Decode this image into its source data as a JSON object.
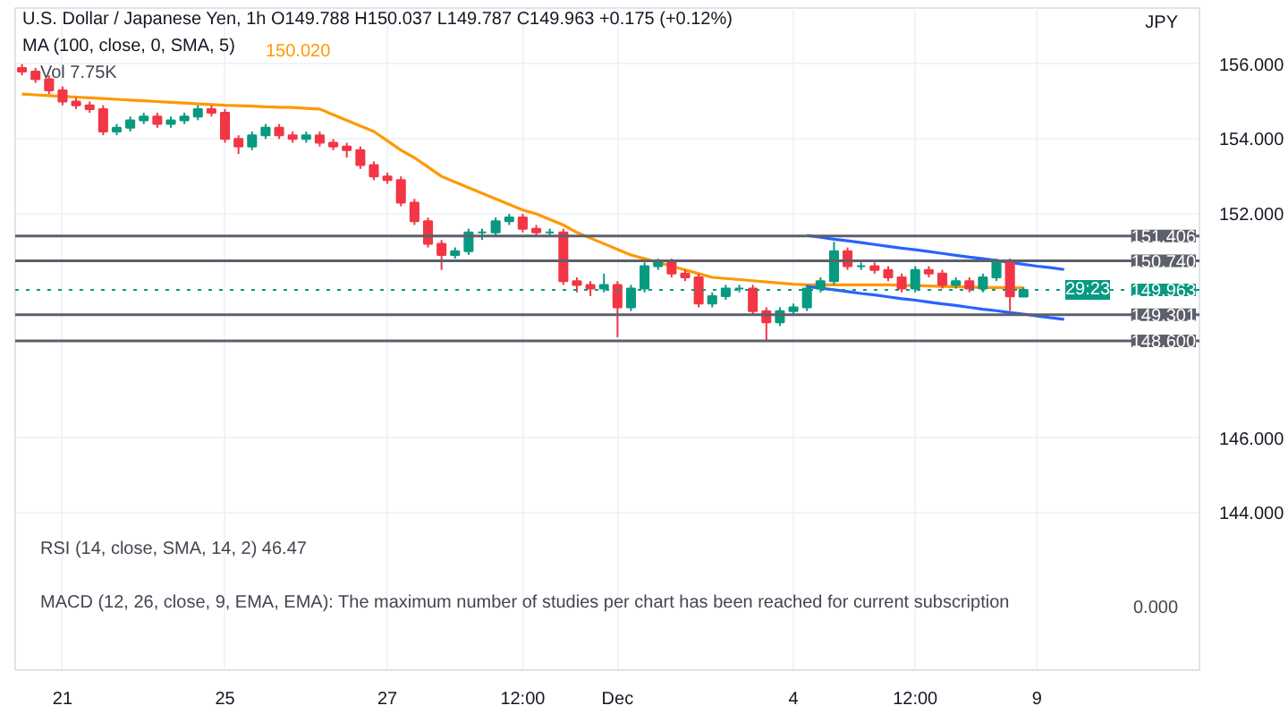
{
  "chart_data": {
    "type": "candlestick",
    "title": "U.S. Dollar / Japanese Yen, 1h",
    "subtitle": "O149.788 H150.037 L149.787 C149.963 +0.175 (+0.12%)",
    "ylabel": "JPY",
    "categories": [
      null,
      null,
      null,
      "21",
      null,
      null,
      null,
      null,
      null,
      null,
      null,
      null,
      null,
      null,
      null,
      "25",
      null,
      null,
      null,
      null,
      null,
      null,
      null,
      null,
      null,
      null,
      null,
      "27",
      null,
      null,
      null,
      null,
      null,
      null,
      null,
      null,
      null,
      "12:00",
      null,
      null,
      null,
      null,
      null,
      null,
      "Dec",
      null,
      null,
      null,
      null,
      null,
      null,
      null,
      null,
      null,
      null,
      null,
      null,
      "4",
      null,
      null,
      null,
      null,
      null,
      null,
      null,
      null,
      "12:00",
      null,
      null,
      null,
      null,
      null,
      null,
      null,
      null,
      "9",
      null,
      null
    ],
    "ohlc": [
      [
        155.9,
        156.0,
        155.7,
        155.8
      ],
      [
        155.8,
        155.9,
        155.5,
        155.6
      ],
      [
        155.6,
        155.7,
        155.2,
        155.3
      ],
      [
        155.3,
        155.4,
        154.9,
        155.0
      ],
      [
        155.0,
        155.1,
        154.8,
        154.9
      ],
      [
        154.9,
        155.0,
        154.7,
        154.8
      ],
      [
        154.8,
        154.9,
        154.1,
        154.2
      ],
      [
        154.2,
        154.4,
        154.1,
        154.3
      ],
      [
        154.3,
        154.6,
        154.2,
        154.5
      ],
      [
        154.5,
        154.7,
        154.4,
        154.6
      ],
      [
        154.6,
        154.7,
        154.3,
        154.4
      ],
      [
        154.4,
        154.6,
        154.3,
        154.5
      ],
      [
        154.5,
        154.7,
        154.4,
        154.6
      ],
      [
        154.6,
        154.9,
        154.5,
        154.8
      ],
      [
        154.8,
        154.9,
        154.6,
        154.7
      ],
      [
        154.7,
        154.8,
        153.9,
        154.0
      ],
      [
        154.0,
        154.1,
        153.6,
        153.8
      ],
      [
        153.8,
        154.2,
        153.7,
        154.1
      ],
      [
        154.1,
        154.4,
        154.0,
        154.3
      ],
      [
        154.3,
        154.4,
        154.0,
        154.1
      ],
      [
        154.1,
        154.2,
        153.9,
        154.0
      ],
      [
        154.0,
        154.2,
        153.9,
        154.1
      ],
      [
        154.1,
        154.2,
        153.8,
        153.9
      ],
      [
        153.9,
        154.0,
        153.7,
        153.8
      ],
      [
        153.8,
        153.9,
        153.5,
        153.7
      ],
      [
        153.7,
        153.8,
        153.2,
        153.3
      ],
      [
        153.3,
        153.4,
        152.9,
        153.0
      ],
      [
        153.0,
        153.1,
        152.8,
        152.9
      ],
      [
        152.9,
        153.0,
        152.2,
        152.3
      ],
      [
        152.3,
        152.4,
        151.7,
        151.8
      ],
      [
        151.8,
        151.9,
        151.1,
        151.2
      ],
      [
        151.2,
        151.3,
        150.5,
        150.9
      ],
      [
        150.9,
        151.1,
        150.8,
        151.0
      ],
      [
        151.0,
        151.6,
        150.9,
        151.5
      ],
      [
        151.5,
        151.6,
        151.3,
        151.5
      ],
      [
        151.5,
        151.9,
        151.4,
        151.8
      ],
      [
        151.8,
        152.0,
        151.7,
        151.9
      ],
      [
        151.9,
        152.0,
        151.5,
        151.6
      ],
      [
        151.6,
        151.7,
        151.4,
        151.5
      ],
      [
        151.5,
        151.6,
        151.4,
        151.5
      ],
      [
        151.5,
        151.6,
        150.1,
        150.2
      ],
      [
        150.2,
        150.3,
        149.9,
        150.1
      ],
      [
        150.1,
        150.2,
        149.8,
        150.0
      ],
      [
        150.0,
        150.4,
        149.9,
        150.1
      ],
      [
        150.1,
        150.2,
        148.7,
        149.5
      ],
      [
        149.5,
        150.1,
        149.4,
        150.0
      ],
      [
        150.0,
        150.7,
        149.9,
        150.6
      ],
      [
        150.6,
        150.8,
        150.5,
        150.7
      ],
      [
        150.7,
        150.8,
        150.3,
        150.4
      ],
      [
        150.4,
        150.5,
        150.2,
        150.3
      ],
      [
        150.3,
        150.4,
        149.5,
        149.6
      ],
      [
        149.6,
        149.9,
        149.5,
        149.8
      ],
      [
        149.8,
        150.1,
        149.7,
        150.0
      ],
      [
        150.0,
        150.1,
        149.9,
        150.0
      ],
      [
        150.0,
        150.1,
        149.3,
        149.4
      ],
      [
        149.4,
        149.5,
        148.6,
        149.1
      ],
      [
        149.1,
        149.5,
        149.0,
        149.4
      ],
      [
        149.4,
        149.6,
        149.3,
        149.5
      ],
      [
        149.5,
        150.1,
        149.4,
        150.0
      ],
      [
        150.0,
        150.3,
        149.9,
        150.2
      ],
      [
        150.2,
        151.25,
        150.1,
        151.0
      ],
      [
        151.0,
        151.1,
        150.5,
        150.6
      ],
      [
        150.6,
        150.7,
        150.5,
        150.6
      ],
      [
        150.6,
        150.7,
        150.4,
        150.5
      ],
      [
        150.5,
        150.6,
        150.2,
        150.3
      ],
      [
        150.3,
        150.4,
        149.9,
        150.0
      ],
      [
        150.0,
        150.6,
        149.9,
        150.5
      ],
      [
        150.5,
        150.6,
        150.3,
        150.4
      ],
      [
        150.4,
        150.5,
        150.0,
        150.1
      ],
      [
        150.1,
        150.3,
        150.0,
        150.2
      ],
      [
        150.2,
        150.3,
        149.9,
        150.0
      ],
      [
        150.0,
        150.4,
        149.9,
        150.3
      ],
      [
        150.3,
        150.8,
        150.2,
        150.7
      ],
      [
        150.7,
        150.8,
        149.4,
        149.79
      ],
      [
        149.788,
        150.037,
        149.787,
        149.963
      ],
      null,
      null,
      null
    ],
    "series": [
      {
        "type": "line",
        "name": "MA (100, close, 0, SMA, 5)",
        "color": "#ff9800",
        "values": [
          155.2,
          155.18,
          155.16,
          155.14,
          155.12,
          155.1,
          155.08,
          155.06,
          155.04,
          155.02,
          155.0,
          154.98,
          154.96,
          154.94,
          154.92,
          154.9,
          154.89,
          154.88,
          154.86,
          154.85,
          154.84,
          154.82,
          154.8,
          154.65,
          154.5,
          154.35,
          154.2,
          153.95,
          153.7,
          153.5,
          153.25,
          153.0,
          152.85,
          152.7,
          152.55,
          152.4,
          152.25,
          152.1,
          152.0,
          151.85,
          151.7,
          151.5,
          151.35,
          151.2,
          151.05,
          150.9,
          150.8,
          150.7,
          150.6,
          150.5,
          150.4,
          150.3,
          150.27,
          150.24,
          150.21,
          150.18,
          150.15,
          150.12,
          150.1,
          150.1,
          150.1,
          150.1,
          150.1,
          150.1,
          150.1,
          150.09,
          150.08,
          150.07,
          150.06,
          150.05,
          150.04,
          150.03,
          150.03,
          150.02,
          150.02,
          null,
          null,
          null
        ]
      },
      {
        "type": "line",
        "color": "#2962ff",
        "values": [
          null,
          null,
          null,
          null,
          null,
          null,
          null,
          null,
          null,
          null,
          null,
          null,
          null,
          null,
          null,
          null,
          null,
          null,
          null,
          null,
          null,
          null,
          null,
          null,
          null,
          null,
          null,
          null,
          null,
          null,
          null,
          null,
          null,
          null,
          null,
          null,
          null,
          null,
          null,
          null,
          null,
          null,
          null,
          null,
          null,
          null,
          null,
          null,
          null,
          null,
          null,
          null,
          null,
          null,
          null,
          null,
          null,
          null,
          151.42,
          151.37,
          151.32,
          151.28,
          151.23,
          151.18,
          151.13,
          151.08,
          151.04,
          150.99,
          150.94,
          150.89,
          150.84,
          150.8,
          150.75,
          150.7,
          150.65,
          150.6,
          150.56,
          150.51
        ]
      },
      {
        "type": "line",
        "color": "#2962ff",
        "values": [
          null,
          null,
          null,
          null,
          null,
          null,
          null,
          null,
          null,
          null,
          null,
          null,
          null,
          null,
          null,
          null,
          null,
          null,
          null,
          null,
          null,
          null,
          null,
          null,
          null,
          null,
          null,
          null,
          null,
          null,
          null,
          null,
          null,
          null,
          null,
          null,
          null,
          null,
          null,
          null,
          null,
          null,
          null,
          null,
          null,
          null,
          null,
          null,
          null,
          null,
          null,
          null,
          null,
          null,
          null,
          null,
          null,
          null,
          150.06,
          150.01,
          149.97,
          149.92,
          149.87,
          149.83,
          149.78,
          149.73,
          149.69,
          149.64,
          149.59,
          149.55,
          149.5,
          149.45,
          149.41,
          149.36,
          149.32,
          149.27,
          149.22,
          149.18
        ]
      }
    ],
    "ref_lines": [
      {
        "axis": "y",
        "value": 151.406,
        "label": "151.406",
        "color": "#5d606b",
        "line_style": "solid"
      },
      {
        "axis": "y",
        "value": 150.74,
        "label": "150.740",
        "color": "#5d606b",
        "line_style": "solid"
      },
      {
        "axis": "y",
        "value": 149.963,
        "label": "149.963",
        "color": "#089981",
        "line_style": "dotted"
      },
      {
        "axis": "y",
        "value": 149.301,
        "label": "149.301",
        "color": "#5d606b",
        "line_style": "solid"
      },
      {
        "axis": "y",
        "value": 148.6,
        "label": "148.600",
        "color": "#5d606b",
        "line_style": "solid"
      }
    ],
    "annotations": [
      "150.020",
      "Vol 7.75K",
      "29:23",
      "RSI (14, close, SMA, 14, 2) 46.47",
      "MACD (12, 26, close, 9, EMA, EMA): The maximum number of studies per chart has been reached for current subscription",
      "0.000"
    ],
    "ylim": [
      139.8,
      157.5
    ],
    "yticks": [
      {
        "value": 144,
        "label": "144.000"
      },
      {
        "value": 146,
        "label": "146.000"
      },
      {
        "value": 152,
        "label": "152.000"
      },
      {
        "value": 154,
        "label": "154.000"
      },
      {
        "value": 156,
        "label": "156.000"
      }
    ],
    "grid": true
  }
}
